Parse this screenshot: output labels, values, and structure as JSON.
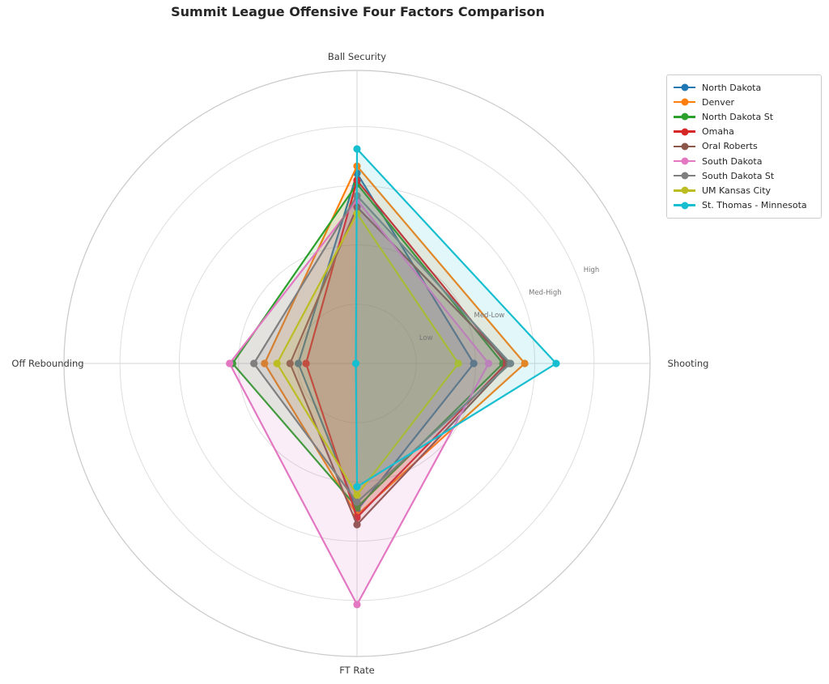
{
  "chart_data": {
    "type": "radar",
    "title": "Summit League Offensive Four Factors Comparison",
    "axes": [
      "Ball Security",
      "Shooting",
      "FT Rate",
      "Off Rebounding"
    ],
    "radial_tick_labels": [
      "Low",
      "Med-Low",
      "Med-High",
      "High"
    ],
    "radial_tick_values": [
      1,
      2,
      3,
      4
    ],
    "r_max": 4.95,
    "grid": true,
    "legend_position": "upper right",
    "series": [
      {
        "name": "North Dakota",
        "color": "#1f77b4",
        "values": [
          3.21,
          1.97,
          2.48,
          0.99
        ]
      },
      {
        "name": "Denver",
        "color": "#ff7f0e",
        "values": [
          3.33,
          2.83,
          2.56,
          1.56
        ]
      },
      {
        "name": "North Dakota St",
        "color": "#2ca02c",
        "values": [
          3.03,
          2.46,
          2.43,
          2.1
        ]
      },
      {
        "name": "Omaha",
        "color": "#d62728",
        "values": [
          3.09,
          2.52,
          2.6,
          0.86
        ]
      },
      {
        "name": "Oral Roberts",
        "color": "#8c564b",
        "values": [
          2.64,
          2.56,
          2.72,
          1.13
        ]
      },
      {
        "name": "South Dakota",
        "color": "#e377c2",
        "values": [
          2.76,
          2.22,
          4.07,
          2.15
        ]
      },
      {
        "name": "South Dakota St",
        "color": "#7f7f7f",
        "values": [
          2.83,
          2.59,
          2.34,
          1.74
        ]
      },
      {
        "name": "UM Kansas City",
        "color": "#bcbd22",
        "values": [
          2.53,
          1.71,
          2.22,
          1.35
        ]
      },
      {
        "name": "St. Thomas - Minnesota",
        "color": "#17becf",
        "values": [
          3.62,
          3.36,
          2.08,
          0.02
        ]
      }
    ],
    "style": {
      "fill_opacity": 0.13,
      "line_width": 2.2,
      "marker_radius": 4.6,
      "grid_color": "#dedede",
      "outer_ring_color": "#c9c9c9",
      "spoke_color": "#d6d6d6",
      "tick_label_color": "#777777",
      "axis_label_color": "#3a3a3a"
    }
  }
}
